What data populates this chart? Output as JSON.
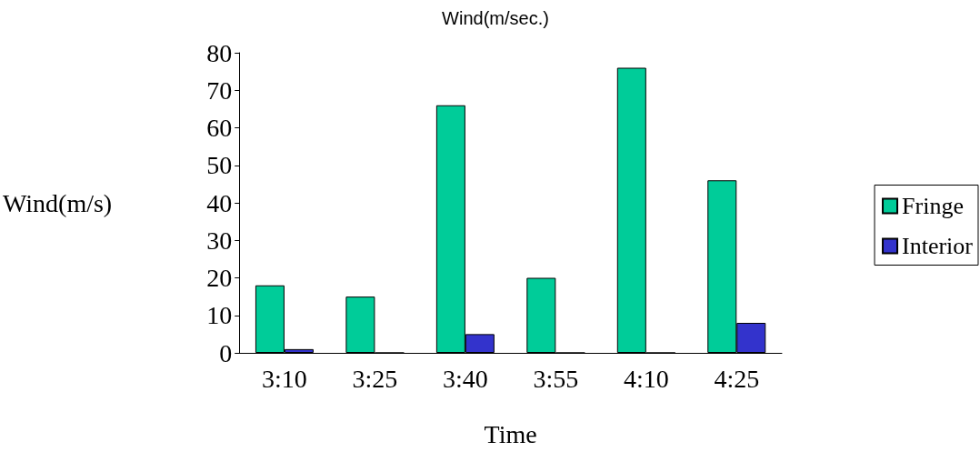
{
  "chart_data": {
    "type": "bar",
    "title": "Wind(m/sec.)",
    "xlabel": "Time",
    "ylabel": "Wind(m/s)",
    "categories": [
      "3:10",
      "3:25",
      "3:40",
      "3:55",
      "4:10",
      "4:25"
    ],
    "series": [
      {
        "name": "Fringe",
        "color": "#00cc99",
        "values": [
          18,
          15,
          66,
          20,
          76,
          46
        ]
      },
      {
        "name": "Interior",
        "color": "#3333cc",
        "values": [
          1,
          0,
          5,
          0,
          0,
          8
        ]
      }
    ],
    "ylim": [
      0,
      80
    ],
    "yticks": [
      0,
      10,
      20,
      30,
      40,
      50,
      60,
      70,
      80
    ],
    "grid": false,
    "legend": "right"
  }
}
